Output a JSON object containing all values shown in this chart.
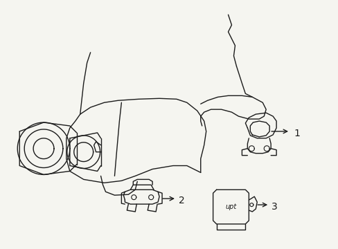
{
  "bg_color": "#f5f5f0",
  "line_color": "#1a1a1a",
  "line_width": 1.0,
  "title": "",
  "figsize": [
    4.89,
    3.6
  ],
  "dpi": 100,
  "label_1": "1",
  "label_2": "2",
  "label_3": "3",
  "label_upt": "upt"
}
